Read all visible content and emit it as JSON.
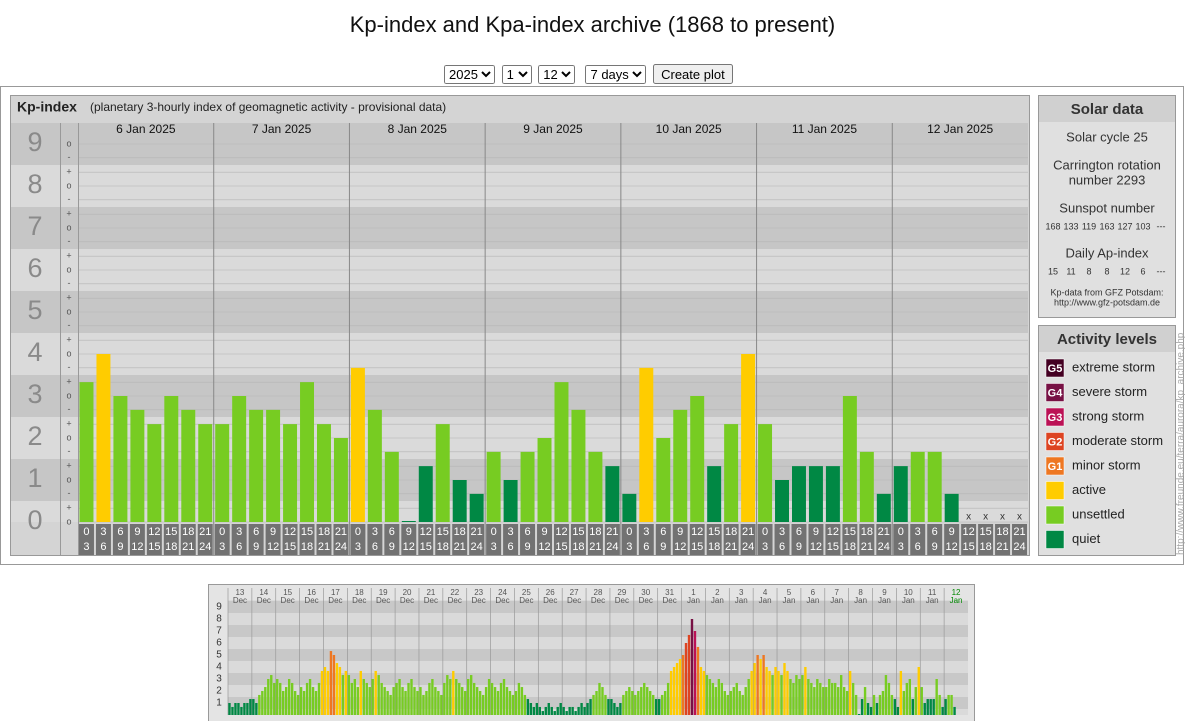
{
  "page_title": "Kp-index and Kpa-index archive (1868 to present)",
  "controls": {
    "year": "2025",
    "month": "1",
    "day": "12",
    "span": "7 days",
    "button": "Create plot"
  },
  "chart_data": [
    {
      "type": "bar",
      "title": "Kp-index",
      "subtitle": "(planetary 3-hourly index of geomagnetic activity - provisional data)",
      "ylim": [
        0,
        9
      ],
      "yticks": [
        0,
        1,
        2,
        3,
        4,
        5,
        6,
        7,
        8,
        9
      ],
      "grid": true,
      "minor_ticks": [
        {
          "value": 0,
          "label": "o"
        },
        {
          "value": 0.33,
          "label": "+"
        },
        {
          "value": 0.67,
          "label": "-"
        },
        {
          "value": 1,
          "label": "o"
        },
        {
          "value": 1.33,
          "label": "+"
        },
        {
          "value": 1.67,
          "label": "-"
        },
        {
          "value": 2,
          "label": "o"
        },
        {
          "value": 2.33,
          "label": "+"
        },
        {
          "value": 2.67,
          "label": "-"
        },
        {
          "value": 3,
          "label": "o"
        },
        {
          "value": 3.33,
          "label": "+"
        },
        {
          "value": 3.67,
          "label": "-"
        },
        {
          "value": 4,
          "label": "o"
        },
        {
          "value": 4.33,
          "label": "+"
        },
        {
          "value": 4.67,
          "label": "-"
        },
        {
          "value": 5,
          "label": "o"
        },
        {
          "value": 5.33,
          "label": "+"
        },
        {
          "value": 5.67,
          "label": "-"
        },
        {
          "value": 6,
          "label": "o"
        },
        {
          "value": 6.33,
          "label": "+"
        },
        {
          "value": 6.67,
          "label": "-"
        },
        {
          "value": 7,
          "label": "o"
        },
        {
          "value": 7.33,
          "label": "+"
        },
        {
          "value": 7.67,
          "label": "-"
        },
        {
          "value": 8,
          "label": "o"
        },
        {
          "value": 8.33,
          "label": "+"
        },
        {
          "value": 8.67,
          "label": "-"
        },
        {
          "value": 9,
          "label": "o"
        }
      ],
      "days": [
        "6 Jan 2025",
        "7 Jan 2025",
        "8 Jan 2025",
        "9 Jan 2025",
        "10 Jan 2025",
        "11 Jan 2025",
        "12 Jan 2025"
      ],
      "intervals": [
        {
          "from": "0",
          "to": "3"
        },
        {
          "from": "3",
          "to": "6"
        },
        {
          "from": "6",
          "to": "9"
        },
        {
          "from": "9",
          "to": "12"
        },
        {
          "from": "12",
          "to": "15"
        },
        {
          "from": "15",
          "to": "18"
        },
        {
          "from": "18",
          "to": "21"
        },
        {
          "from": "21",
          "to": "24"
        }
      ],
      "missing_label": "x",
      "values": [
        3.33,
        4,
        3,
        2.67,
        2.33,
        3,
        2.67,
        2.33,
        2.33,
        3,
        2.67,
        2.67,
        2.33,
        3.33,
        2.33,
        2,
        3.67,
        2.67,
        1.67,
        0,
        1.33,
        2.33,
        1,
        0.67,
        1.67,
        1,
        1.67,
        2,
        3.33,
        2.67,
        1.67,
        1.33,
        0.67,
        3.67,
        2,
        2.67,
        3,
        1.33,
        2.33,
        4,
        2.33,
        1,
        1.33,
        1.33,
        1.33,
        3,
        1.67,
        0.67,
        1.33,
        1.67,
        1.67,
        0.67,
        null,
        null,
        null,
        null
      ],
      "colors": [
        "#7c2",
        "#fc0",
        "#7c2",
        "#7c2",
        "#7c2",
        "#7c2",
        "#7c2",
        "#7c2",
        "#7c2",
        "#7c2",
        "#7c2",
        "#7c2",
        "#7c2",
        "#7c2",
        "#7c2",
        "#7c2",
        "#fc0",
        "#7c2",
        "#7c2",
        "#084",
        "#084",
        "#7c2",
        "#084",
        "#084",
        "#7c2",
        "#084",
        "#7c2",
        "#7c2",
        "#7c2",
        "#7c2",
        "#7c2",
        "#084",
        "#084",
        "#fc0",
        "#7c2",
        "#7c2",
        "#7c2",
        "#084",
        "#7c2",
        "#fc0",
        "#7c2",
        "#084",
        "#084",
        "#084",
        "#084",
        "#7c2",
        "#7c2",
        "#084",
        "#084",
        "#7c2",
        "#7c2",
        "#084",
        null,
        null,
        null,
        null
      ]
    },
    {
      "type": "bar",
      "ylim": [
        0,
        9
      ],
      "yticks": [
        1,
        2,
        3,
        4,
        5,
        6,
        7,
        8,
        9
      ],
      "grid": true,
      "today_color": "#080",
      "days": [
        "13",
        "14",
        "15",
        "16",
        "17",
        "18",
        "19",
        "20",
        "21",
        "22",
        "23",
        "24",
        "25",
        "26",
        "27",
        "28",
        "29",
        "30",
        "31",
        "1",
        "2",
        "3",
        "4",
        "5",
        "6",
        "7",
        "8",
        "9",
        "10",
        "11",
        "12"
      ],
      "months": [
        "Dec",
        "Dec",
        "Dec",
        "Dec",
        "Dec",
        "Dec",
        "Dec",
        "Dec",
        "Dec",
        "Dec",
        "Dec",
        "Dec",
        "Dec",
        "Dec",
        "Dec",
        "Dec",
        "Dec",
        "Dec",
        "Dec",
        "Jan",
        "Jan",
        "Jan",
        "Jan",
        "Jan",
        "Jan",
        "Jan",
        "Jan",
        "Jan",
        "Jan",
        "Jan",
        "Jan"
      ],
      "values": [
        1,
        0.67,
        1,
        1,
        0.67,
        1,
        1,
        1.33,
        1.33,
        1,
        1.67,
        2,
        2.33,
        3,
        3.33,
        2.67,
        3,
        2.67,
        2,
        2.33,
        3,
        2.67,
        2,
        1.67,
        2.33,
        2,
        2.67,
        3,
        2.33,
        2,
        2.67,
        3.67,
        4,
        3.67,
        5.33,
        5,
        4.33,
        4,
        3.33,
        3.67,
        3.33,
        2.67,
        3,
        2.33,
        3.67,
        3,
        2.67,
        2.33,
        3,
        3.67,
        3.33,
        2.67,
        2.33,
        2,
        1.67,
        2.33,
        2.67,
        3,
        2.33,
        2,
        2.67,
        3,
        2.33,
        2,
        2.33,
        1.67,
        2,
        2.67,
        3,
        2.33,
        2,
        1.67,
        2.67,
        3.33,
        3,
        3.67,
        3,
        2.67,
        2.33,
        2,
        3,
        3.33,
        2.67,
        2.33,
        2,
        1.67,
        2.33,
        3,
        2.67,
        2.33,
        2,
        2.67,
        3,
        2.33,
        2,
        1.67,
        2,
        2.67,
        2.33,
        1.67,
        1.33,
        1,
        0.67,
        1,
        0.67,
        0.33,
        0.67,
        1,
        0.67,
        0.33,
        0.67,
        1,
        0.67,
        0.33,
        0.67,
        0.67,
        0.33,
        0.67,
        1,
        0.67,
        1,
        1.33,
        1.67,
        2,
        2.67,
        2.33,
        1.67,
        1.33,
        1.33,
        1,
        0.67,
        1,
        1.67,
        2,
        2.33,
        2,
        1.67,
        2,
        2.33,
        2.67,
        2.33,
        2,
        1.67,
        1.33,
        1.33,
        1.67,
        2,
        2.67,
        3.67,
        4,
        4.33,
        4.67,
        5,
        6,
        6.67,
        8,
        7,
        5.67,
        4,
        3.67,
        3.33,
        3,
        2.67,
        2.33,
        3,
        2.67,
        2,
        1.67,
        2,
        2.33,
        2.67,
        2,
        1.67,
        2.33,
        3,
        3.67,
        4.33,
        5,
        4.67,
        5,
        4,
        3.67,
        3.33,
        4,
        3.67,
        3.33,
        4.33,
        3.67,
        3,
        2.67,
        3.33,
        3,
        3.33,
        4,
        3,
        2.67,
        2.33,
        3,
        2.67,
        2.33,
        2.33,
        3,
        2.67,
        2.67,
        2.33,
        3.33,
        2.33,
        2,
        3.67,
        2.67,
        1.67,
        0,
        1.33,
        2.33,
        1,
        0.67,
        1.67,
        1,
        1.67,
        2,
        3.33,
        2.67,
        1.67,
        1.33,
        0.67,
        3.67,
        2,
        2.67,
        3,
        1.33,
        2.33,
        4,
        2.33,
        1,
        1.33,
        1.33,
        1.33,
        3,
        1.67,
        0.67,
        1.33,
        1.67,
        1.67,
        0.67,
        null,
        null,
        null,
        null
      ],
      "colors": [
        "#084",
        "#084",
        "#084",
        "#084",
        "#084",
        "#084",
        "#084",
        "#084",
        "#084",
        "#084",
        "#7c2",
        "#7c2",
        "#7c2",
        "#7c2",
        "#7c2",
        "#7c2",
        "#7c2",
        "#7c2",
        "#7c2",
        "#7c2",
        "#7c2",
        "#7c2",
        "#7c2",
        "#7c2",
        "#7c2",
        "#7c2",
        "#7c2",
        "#7c2",
        "#7c2",
        "#7c2",
        "#7c2",
        "#fc0",
        "#fc0",
        "#fc0",
        "#e72",
        "#e72",
        "#fc0",
        "#fc0",
        "#7c2",
        "#fc0",
        "#7c2",
        "#7c2",
        "#7c2",
        "#7c2",
        "#fc0",
        "#7c2",
        "#7c2",
        "#7c2",
        "#7c2",
        "#fc0",
        "#7c2",
        "#7c2",
        "#7c2",
        "#7c2",
        "#7c2",
        "#7c2",
        "#7c2",
        "#7c2",
        "#7c2",
        "#7c2",
        "#7c2",
        "#7c2",
        "#7c2",
        "#7c2",
        "#7c2",
        "#7c2",
        "#7c2",
        "#7c2",
        "#7c2",
        "#7c2",
        "#7c2",
        "#7c2",
        "#7c2",
        "#7c2",
        "#7c2",
        "#fc0",
        "#7c2",
        "#7c2",
        "#7c2",
        "#7c2",
        "#7c2",
        "#7c2",
        "#7c2",
        "#7c2",
        "#7c2",
        "#7c2",
        "#7c2",
        "#7c2",
        "#7c2",
        "#7c2",
        "#7c2",
        "#7c2",
        "#7c2",
        "#7c2",
        "#7c2",
        "#7c2",
        "#7c2",
        "#7c2",
        "#7c2",
        "#7c2",
        "#084",
        "#084",
        "#084",
        "#084",
        "#084",
        "#084",
        "#084",
        "#084",
        "#084",
        "#084",
        "#084",
        "#084",
        "#084",
        "#084",
        "#084",
        "#084",
        "#084",
        "#084",
        "#084",
        "#084",
        "#084",
        "#084",
        "#7c2",
        "#7c2",
        "#7c2",
        "#7c2",
        "#7c2",
        "#084",
        "#084",
        "#084",
        "#084",
        "#084",
        "#7c2",
        "#7c2",
        "#7c2",
        "#7c2",
        "#7c2",
        "#7c2",
        "#7c2",
        "#7c2",
        "#7c2",
        "#7c2",
        "#7c2",
        "#084",
        "#084",
        "#7c2",
        "#7c2",
        "#7c2",
        "#fc0",
        "#fc0",
        "#fc0",
        "#fc0",
        "#e72",
        "#d42",
        "#d42",
        "#714",
        "#b15",
        "#e72",
        "#fc0",
        "#fc0",
        "#7c2",
        "#7c2",
        "#7c2",
        "#7c2",
        "#7c2",
        "#7c2",
        "#7c2",
        "#7c2",
        "#7c2",
        "#7c2",
        "#7c2",
        "#7c2",
        "#7c2",
        "#7c2",
        "#7c2",
        "#fc0",
        "#fc0",
        "#e72",
        "#fc0",
        "#e72",
        "#fc0",
        "#fc0",
        "#7c2",
        "#fc0",
        "#fc0",
        "#7c2",
        "#fc0",
        "#fc0",
        "#7c2",
        "#7c2",
        "#7c2",
        "#7c2",
        "#7c2",
        "#fc0",
        "#7c2",
        "#7c2",
        "#7c2",
        "#7c2",
        "#7c2",
        "#7c2",
        "#7c2",
        "#7c2",
        "#7c2",
        "#7c2",
        "#7c2",
        "#7c2",
        "#7c2",
        "#7c2",
        "#fc0",
        "#7c2",
        "#7c2",
        "#084",
        "#084",
        "#7c2",
        "#084",
        "#084",
        "#7c2",
        "#084",
        "#7c2",
        "#7c2",
        "#7c2",
        "#7c2",
        "#7c2",
        "#084",
        "#084",
        "#fc0",
        "#7c2",
        "#7c2",
        "#7c2",
        "#084",
        "#7c2",
        "#fc0",
        "#7c2",
        "#084",
        "#084",
        "#084",
        "#084",
        "#7c2",
        "#7c2",
        "#084",
        "#084",
        "#7c2",
        "#7c2",
        "#084",
        null,
        null,
        null,
        null
      ]
    }
  ],
  "solar": {
    "title": "Solar data",
    "cycle": "Solar cycle 25",
    "carrington": [
      "Carrington rotation",
      "number 2293"
    ],
    "sunspot_title": "Sunspot number",
    "sunspots": [
      168,
      133,
      119,
      163,
      127,
      103,
      "---"
    ],
    "ap_title": "Daily Ap-index",
    "ap": [
      15,
      11,
      8,
      8,
      12,
      6,
      "---"
    ],
    "source": [
      "Kp-data from GFZ Potsdam:",
      "http://www.gfz-potsdam.de"
    ]
  },
  "levels": {
    "title": "Activity levels",
    "items": [
      {
        "code": "G5",
        "name": "extreme storm",
        "color": "#402"
      },
      {
        "code": "G4",
        "name": "severe storm",
        "color": "#714"
      },
      {
        "code": "G3",
        "name": "strong storm",
        "color": "#b15"
      },
      {
        "code": "G2",
        "name": "moderate storm",
        "color": "#d42"
      },
      {
        "code": "G1",
        "name": "minor storm",
        "color": "#e72"
      },
      {
        "name": "active",
        "color": "#fc0"
      },
      {
        "name": "unsettled",
        "color": "#7c2"
      },
      {
        "name": "quiet",
        "color": "#084"
      }
    ]
  },
  "page_url": "http://www.freunde.eu/terra/aurora/kp_archive.php"
}
